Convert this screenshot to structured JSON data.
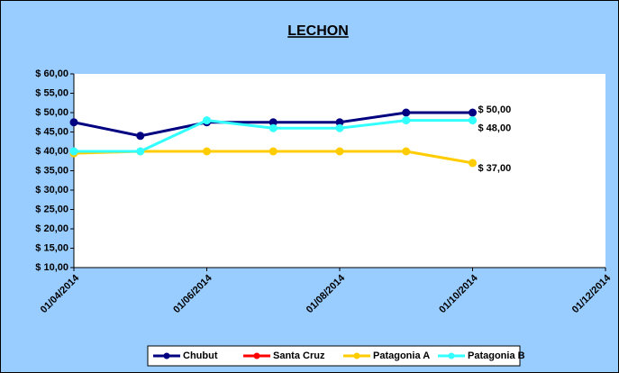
{
  "chart_data": {
    "type": "line",
    "title": "LECHON",
    "x": [
      "01/04/2014",
      "01/05/2014",
      "01/06/2014",
      "01/07/2014",
      "01/08/2014",
      "01/09/2014",
      "01/10/2014"
    ],
    "xlim": [
      "01/04/2014",
      "01/12/2014"
    ],
    "xticks": [
      "01/04/2014",
      "01/06/2014",
      "01/08/2014",
      "01/10/2014",
      "01/12/2014"
    ],
    "ylim": [
      10,
      60
    ],
    "yticks": [
      {
        "value": 10,
        "label": "$ 10,00"
      },
      {
        "value": 15,
        "label": "$ 15,00"
      },
      {
        "value": 20,
        "label": "$ 20,00"
      },
      {
        "value": 25,
        "label": "$ 25,00"
      },
      {
        "value": 30,
        "label": "$ 30,00"
      },
      {
        "value": 35,
        "label": "$ 35,00"
      },
      {
        "value": 40,
        "label": "$ 40,00"
      },
      {
        "value": 45,
        "label": "$ 45,00"
      },
      {
        "value": 50,
        "label": "$ 50,00"
      },
      {
        "value": 55,
        "label": "$ 55,00"
      },
      {
        "value": 60,
        "label": "$ 60,00"
      }
    ],
    "legend": "bottom",
    "series": [
      {
        "name": "Chubut",
        "color": "#000080",
        "values": [
          47.5,
          44,
          47.5,
          47.5,
          47.5,
          50,
          50
        ],
        "value_labels": [
          null,
          null,
          null,
          null,
          null,
          null,
          "$ 50,00"
        ]
      },
      {
        "name": "Santa Cruz",
        "color": "#ff0000",
        "values": [
          null,
          null,
          null,
          null,
          null,
          null,
          null
        ]
      },
      {
        "name": "Patagonia A",
        "color": "#ffcc00",
        "values": [
          39.5,
          40,
          40,
          40,
          40,
          40,
          37
        ],
        "value_labels": [
          null,
          null,
          null,
          null,
          null,
          null,
          "$ 37,00"
        ]
      },
      {
        "name": "Patagonia B",
        "color": "#33ffff",
        "values": [
          40,
          40,
          48,
          46,
          46,
          48,
          48
        ],
        "value_labels": [
          null,
          null,
          null,
          null,
          null,
          null,
          "$ 48,00"
        ]
      }
    ]
  }
}
